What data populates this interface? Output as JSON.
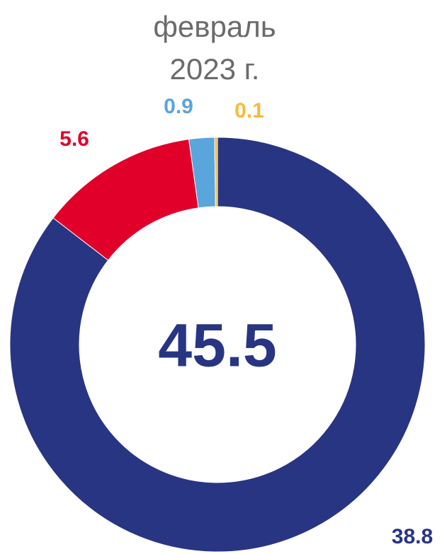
{
  "chart_data": {
    "type": "donut",
    "title": "февраль 2023 г.",
    "values": [
      38.8,
      5.6,
      0.9,
      0.1
    ],
    "colors": [
      "#283583",
      "#e0002a",
      "#5aa5dc",
      "#f9b93a"
    ],
    "total": 45.5
  }
}
